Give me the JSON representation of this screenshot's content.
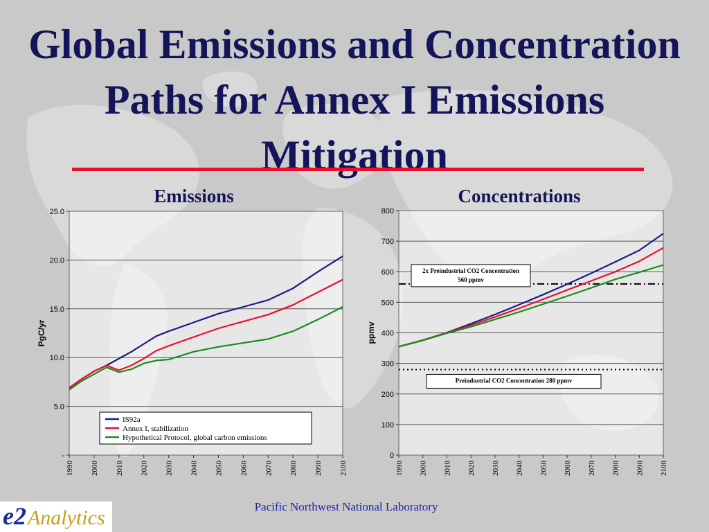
{
  "slide": {
    "title": "Global Emissions and Concentration Paths for Annex I Emissions Mitigation",
    "footer": "Pacific Northwest National Laboratory",
    "logo_mark": "e2",
    "logo_word": "Analytics",
    "title_rule_color": "#e8112d"
  },
  "chart_data": [
    {
      "type": "line",
      "title": "Emissions",
      "xlabel": "",
      "ylabel": "PgC/yr",
      "ylim": [
        0,
        25
      ],
      "xlim": [
        1990,
        2100
      ],
      "yticks": [
        0,
        5,
        10,
        15,
        20,
        25
      ],
      "ytick_labels": [
        "-",
        "5.0",
        "10.0",
        "15.0",
        "20.0",
        "25.0"
      ],
      "xticks": [
        1990,
        2000,
        2010,
        2020,
        2030,
        2040,
        2050,
        2060,
        2070,
        2080,
        2090,
        2100
      ],
      "grid": "horizontal",
      "legend": "bottom-center",
      "series": [
        {
          "name": "IS92a",
          "color": "#1a1a8c",
          "x": [
            1990,
            1995,
            2000,
            2005,
            2010,
            2015,
            2020,
            2025,
            2030,
            2040,
            2050,
            2060,
            2070,
            2080,
            2090,
            2100
          ],
          "y": [
            6.9,
            7.8,
            8.6,
            9.2,
            9.9,
            10.6,
            11.4,
            12.2,
            12.7,
            13.6,
            14.5,
            15.2,
            15.9,
            17.1,
            18.8,
            20.4
          ]
        },
        {
          "name": "Annex I, stabilization",
          "color": "#e8112d",
          "x": [
            1990,
            1995,
            2000,
            2005,
            2010,
            2015,
            2020,
            2025,
            2030,
            2040,
            2050,
            2060,
            2070,
            2080,
            2090,
            2100
          ],
          "y": [
            6.9,
            7.8,
            8.6,
            9.2,
            8.7,
            9.2,
            9.9,
            10.7,
            11.2,
            12.1,
            13.0,
            13.7,
            14.4,
            15.4,
            16.7,
            18.0
          ]
        },
        {
          "name": "Hypothetical Protocol, global carbon emissions",
          "color": "#1a8c1a",
          "x": [
            1990,
            1995,
            2000,
            2005,
            2010,
            2015,
            2020,
            2025,
            2030,
            2040,
            2050,
            2060,
            2070,
            2080,
            2090,
            2100
          ],
          "y": [
            6.7,
            7.6,
            8.3,
            9.0,
            8.5,
            8.8,
            9.4,
            9.7,
            9.8,
            10.6,
            11.1,
            11.5,
            11.9,
            12.7,
            13.9,
            15.2
          ]
        }
      ]
    },
    {
      "type": "line",
      "title": "Concentrations",
      "xlabel": "",
      "ylabel": "ppmv",
      "ylim": [
        0,
        800
      ],
      "xlim": [
        1990,
        2100
      ],
      "yticks": [
        0,
        100,
        200,
        300,
        400,
        500,
        600,
        700,
        800
      ],
      "ytick_labels": [
        "0",
        "100",
        "200",
        "300",
        "400",
        "500",
        "600",
        "700",
        "800"
      ],
      "xticks": [
        1990,
        2000,
        2010,
        2020,
        2030,
        2040,
        2050,
        2060,
        2070,
        2080,
        2090,
        2100
      ],
      "grid": "horizontal",
      "legend": "none",
      "series": [
        {
          "color": "#1a1a8c",
          "x": [
            1990,
            2000,
            2010,
            2020,
            2030,
            2040,
            2050,
            2060,
            2070,
            2080,
            2090,
            2100
          ],
          "y": [
            355,
            376,
            401,
            430,
            460,
            492,
            525,
            559,
            595,
            632,
            670,
            725
          ]
        },
        {
          "color": "#e8112d",
          "x": [
            1990,
            2000,
            2010,
            2020,
            2030,
            2040,
            2050,
            2060,
            2070,
            2080,
            2090,
            2100
          ],
          "y": [
            355,
            376,
            400,
            425,
            452,
            480,
            510,
            540,
            570,
            600,
            634,
            678
          ]
        },
        {
          "color": "#1a8c1a",
          "x": [
            1990,
            2000,
            2010,
            2020,
            2030,
            2040,
            2050,
            2060,
            2070,
            2080,
            2090,
            2100
          ],
          "y": [
            355,
            375,
            399,
            420,
            444,
            468,
            494,
            520,
            547,
            575,
            598,
            622
          ]
        }
      ],
      "reference_lines": [
        {
          "y": 560,
          "style": "dash-dot",
          "label_lines": [
            "2x Preindustrial CO2 Concentration",
            "560 ppmv"
          ]
        },
        {
          "y": 280,
          "style": "dotted",
          "label_lines": [
            "Preindustrial CO2 Concentration 280 ppmv"
          ]
        }
      ]
    }
  ]
}
